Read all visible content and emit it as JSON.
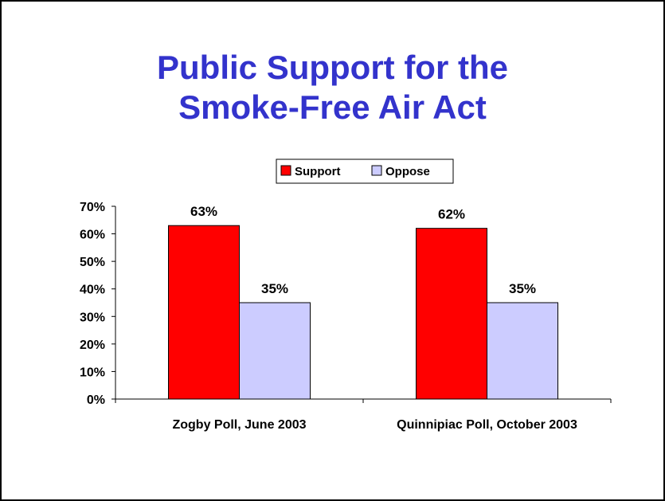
{
  "title": {
    "line1": "Public Support for the",
    "line2": "Smoke-Free Air Act"
  },
  "colors": {
    "title": "#3333cc",
    "support": "#ff0000",
    "oppose": "#ccccff"
  },
  "chart_data": {
    "type": "bar",
    "categories": [
      "Zogby Poll, June 2003",
      "Quinnipiac Poll, October 2003"
    ],
    "series": [
      {
        "name": "Support",
        "values": [
          63,
          62
        ],
        "labels": [
          "63%",
          "62%"
        ]
      },
      {
        "name": "Oppose",
        "values": [
          35,
          35
        ],
        "labels": [
          "35%",
          "35%"
        ]
      }
    ],
    "ylim": [
      0,
      70
    ],
    "yticks": [
      0,
      10,
      20,
      30,
      40,
      50,
      60,
      70
    ],
    "ytick_labels": [
      "0%",
      "10%",
      "20%",
      "30%",
      "40%",
      "50%",
      "60%",
      "70%"
    ],
    "legend_position": "top",
    "grid": false
  }
}
